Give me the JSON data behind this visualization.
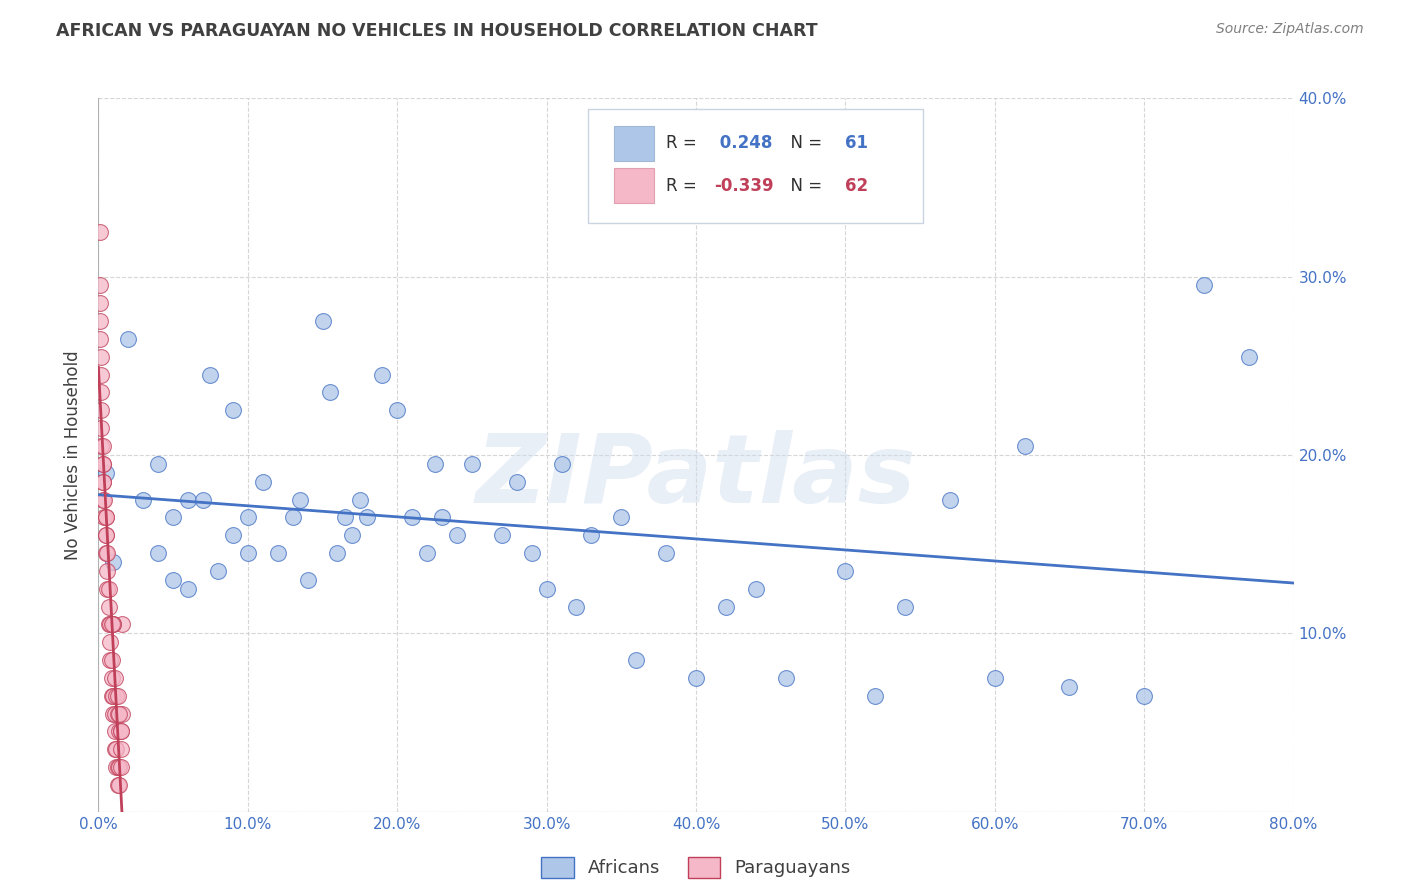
{
  "title": "AFRICAN VS PARAGUAYAN NO VEHICLES IN HOUSEHOLD CORRELATION CHART",
  "source": "Source: ZipAtlas.com",
  "ylabel": "No Vehicles in Household",
  "watermark": "ZIPatlas",
  "xlim": [
    0.0,
    0.8
  ],
  "ylim": [
    0.0,
    0.4
  ],
  "xticks": [
    0.0,
    0.1,
    0.2,
    0.3,
    0.4,
    0.5,
    0.6,
    0.7,
    0.8
  ],
  "yticks": [
    0.0,
    0.1,
    0.2,
    0.3,
    0.4
  ],
  "xticklabels": [
    "0.0%",
    "10.0%",
    "20.0%",
    "30.0%",
    "40.0%",
    "50.0%",
    "60.0%",
    "70.0%",
    "80.0%"
  ],
  "yticklabels_right": [
    "",
    "10.0%",
    "20.0%",
    "30.0%",
    "40.0%"
  ],
  "legend_africans": "Africans",
  "legend_paraguayans": "Paraguayans",
  "R_africans": 0.248,
  "N_africans": 61,
  "R_paraguayans": -0.339,
  "N_paraguayans": 62,
  "color_africans": "#aec6e8",
  "color_paraguayans": "#f5b8c8",
  "line_color_africans": "#4472c4",
  "line_color_paraguayans": "#c0405a",
  "background_color": "#ffffff",
  "title_color": "#404040",
  "source_color": "#808080",
  "tick_color_x": "#4472c4",
  "tick_color_y": "#4472c4",
  "africans_x": [
    0.005,
    0.01,
    0.02,
    0.03,
    0.04,
    0.04,
    0.05,
    0.05,
    0.06,
    0.06,
    0.07,
    0.075,
    0.08,
    0.09,
    0.09,
    0.1,
    0.1,
    0.11,
    0.12,
    0.13,
    0.135,
    0.14,
    0.15,
    0.155,
    0.16,
    0.165,
    0.17,
    0.175,
    0.18,
    0.19,
    0.2,
    0.21,
    0.22,
    0.225,
    0.23,
    0.24,
    0.25,
    0.27,
    0.28,
    0.29,
    0.3,
    0.31,
    0.32,
    0.33,
    0.35,
    0.36,
    0.38,
    0.4,
    0.42,
    0.44,
    0.46,
    0.5,
    0.52,
    0.54,
    0.57,
    0.6,
    0.62,
    0.65,
    0.7,
    0.74,
    0.77
  ],
  "africans_y": [
    0.19,
    0.14,
    0.265,
    0.175,
    0.195,
    0.145,
    0.165,
    0.13,
    0.175,
    0.125,
    0.175,
    0.245,
    0.135,
    0.225,
    0.155,
    0.165,
    0.145,
    0.185,
    0.145,
    0.165,
    0.175,
    0.13,
    0.275,
    0.235,
    0.145,
    0.165,
    0.155,
    0.175,
    0.165,
    0.245,
    0.225,
    0.165,
    0.145,
    0.195,
    0.165,
    0.155,
    0.195,
    0.155,
    0.185,
    0.145,
    0.125,
    0.195,
    0.115,
    0.155,
    0.165,
    0.085,
    0.145,
    0.075,
    0.115,
    0.125,
    0.075,
    0.135,
    0.065,
    0.115,
    0.175,
    0.075,
    0.205,
    0.07,
    0.065,
    0.295,
    0.255
  ],
  "paraguayans_x": [
    0.001,
    0.001,
    0.001,
    0.001,
    0.001,
    0.002,
    0.002,
    0.002,
    0.002,
    0.002,
    0.002,
    0.003,
    0.003,
    0.003,
    0.003,
    0.003,
    0.003,
    0.004,
    0.004,
    0.005,
    0.005,
    0.005,
    0.005,
    0.005,
    0.006,
    0.006,
    0.006,
    0.007,
    0.007,
    0.007,
    0.008,
    0.008,
    0.008,
    0.009,
    0.009,
    0.009,
    0.01,
    0.01,
    0.011,
    0.011,
    0.011,
    0.012,
    0.012,
    0.013,
    0.013,
    0.013,
    0.014,
    0.014,
    0.014,
    0.015,
    0.015,
    0.015,
    0.016,
    0.016,
    0.01,
    0.011,
    0.012,
    0.013,
    0.014,
    0.015,
    0.01,
    0.009
  ],
  "paraguayans_y": [
    0.325,
    0.295,
    0.285,
    0.275,
    0.265,
    0.255,
    0.245,
    0.235,
    0.225,
    0.215,
    0.205,
    0.205,
    0.195,
    0.195,
    0.185,
    0.185,
    0.175,
    0.175,
    0.165,
    0.165,
    0.165,
    0.155,
    0.155,
    0.145,
    0.145,
    0.135,
    0.125,
    0.125,
    0.115,
    0.105,
    0.105,
    0.095,
    0.085,
    0.085,
    0.075,
    0.065,
    0.065,
    0.055,
    0.055,
    0.045,
    0.035,
    0.035,
    0.025,
    0.025,
    0.015,
    0.055,
    0.025,
    0.045,
    0.015,
    0.035,
    0.045,
    0.025,
    0.105,
    0.055,
    0.105,
    0.075,
    0.065,
    0.065,
    0.055,
    0.045,
    0.105,
    0.105
  ]
}
